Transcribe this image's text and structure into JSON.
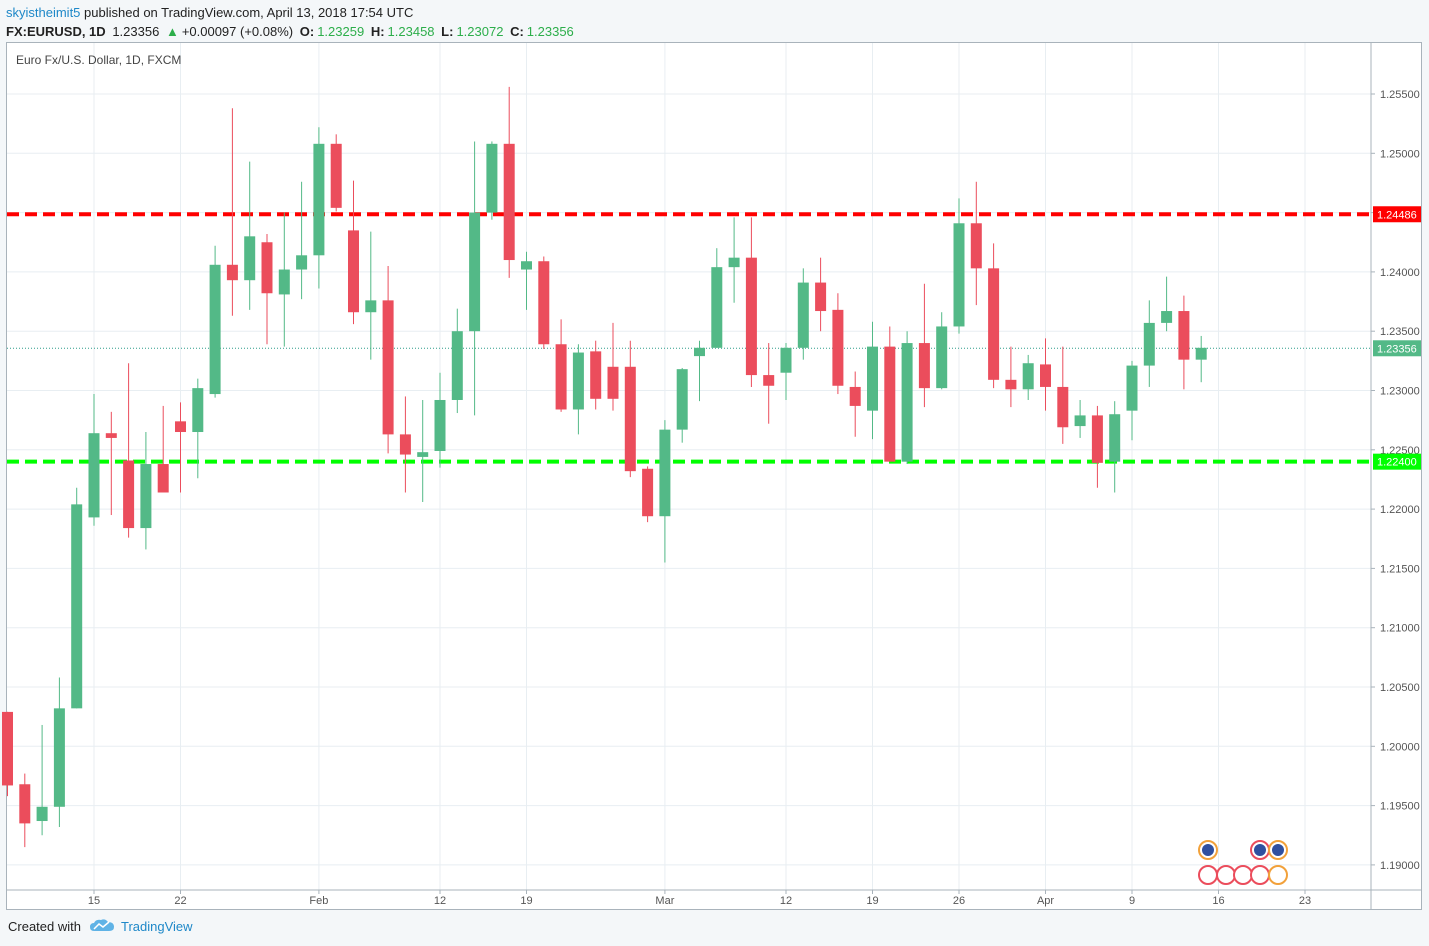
{
  "header": {
    "user": "skyistheimit5",
    "published": "published on TradingView.com, April 13, 2018 17:54 UTC",
    "symbol": "FX:EURUSD, 1D",
    "last": "1.23356",
    "change": "+0.00097 (+0.08%)",
    "o_label": "O:",
    "o_val": "1.23259",
    "h_label": "H:",
    "h_val": "1.23458",
    "l_label": "L:",
    "l_val": "1.23072",
    "c_label": "C:",
    "c_val": "1.23356"
  },
  "footer": {
    "created": "Created with",
    "brand": "TradingView"
  },
  "icons": {
    "up_arrow": "triangle-up-icon",
    "brand_logo": "tradingview-cloud-icon",
    "events": "economic-event-flag-icons"
  },
  "colors": {
    "up": "#53b987",
    "down": "#eb4d5c",
    "resistance": "#ff0000",
    "support": "#00ff00",
    "price_line": "#2f9e8a"
  },
  "chart_data": {
    "type": "candlestick",
    "title": "Euro Fx/U.S. Dollar, 1D, FXCM",
    "xlabel": "",
    "ylabel": "",
    "ylim": [
      1.1875,
      1.2585
    ],
    "y_ticks": [
      "1.25500",
      "1.25000",
      "1.24500",
      "1.24000",
      "1.23500",
      "1.23000",
      "1.22500",
      "1.22000",
      "1.21500",
      "1.21000",
      "1.20500",
      "1.20000",
      "1.19500",
      "1.19000"
    ],
    "x_ticks": [
      {
        "label": "15",
        "day": 5
      },
      {
        "label": "22",
        "day": 10
      },
      {
        "label": "Feb",
        "day": 18
      },
      {
        "label": "12",
        "day": 25
      },
      {
        "label": "19",
        "day": 30
      },
      {
        "label": "Mar",
        "day": 38
      },
      {
        "label": "12",
        "day": 45
      },
      {
        "label": "19",
        "day": 50
      },
      {
        "label": "26",
        "day": 55
      },
      {
        "label": "Apr",
        "day": 60
      },
      {
        "label": "9",
        "day": 65
      },
      {
        "label": "16",
        "day": 70
      },
      {
        "label": "23",
        "day": 75
      }
    ],
    "grid": true,
    "candles": [
      {
        "o": 1.2029,
        "h": 1.2029,
        "l": 1.1958,
        "c": 1.1967
      },
      {
        "o": 1.1968,
        "h": 1.1977,
        "l": 1.1915,
        "c": 1.1935
      },
      {
        "o": 1.1937,
        "h": 1.2018,
        "l": 1.1925,
        "c": 1.1949
      },
      {
        "o": 1.1949,
        "h": 1.2058,
        "l": 1.1932,
        "c": 1.2032
      },
      {
        "o": 1.2032,
        "h": 1.2218,
        "l": 1.2032,
        "c": 1.2204
      },
      {
        "o": 1.2193,
        "h": 1.2297,
        "l": 1.2186,
        "c": 1.2264
      },
      {
        "o": 1.2264,
        "h": 1.2282,
        "l": 1.2195,
        "c": 1.226
      },
      {
        "o": 1.2241,
        "h": 1.2323,
        "l": 1.2176,
        "c": 1.2184
      },
      {
        "o": 1.2184,
        "h": 1.2265,
        "l": 1.2166,
        "c": 1.2238
      },
      {
        "o": 1.2238,
        "h": 1.2287,
        "l": 1.222,
        "c": 1.2214
      },
      {
        "o": 1.2274,
        "h": 1.229,
        "l": 1.2214,
        "c": 1.2265
      },
      {
        "o": 1.2265,
        "h": 1.231,
        "l": 1.2226,
        "c": 1.2302
      },
      {
        "o": 1.2297,
        "h": 1.2422,
        "l": 1.2294,
        "c": 1.2406
      },
      {
        "o": 1.2406,
        "h": 1.2538,
        "l": 1.2363,
        "c": 1.2393
      },
      {
        "o": 1.2393,
        "h": 1.2493,
        "l": 1.2368,
        "c": 1.243
      },
      {
        "o": 1.2425,
        "h": 1.2432,
        "l": 1.2339,
        "c": 1.2382
      },
      {
        "o": 1.2381,
        "h": 1.245,
        "l": 1.2337,
        "c": 1.2402
      },
      {
        "o": 1.2402,
        "h": 1.2476,
        "l": 1.2377,
        "c": 1.2414
      },
      {
        "o": 1.2414,
        "h": 1.2522,
        "l": 1.2386,
        "c": 1.2508
      },
      {
        "o": 1.2508,
        "h": 1.2516,
        "l": 1.2451,
        "c": 1.2454
      },
      {
        "o": 1.2435,
        "h": 1.2477,
        "l": 1.2356,
        "c": 1.2366
      },
      {
        "o": 1.2366,
        "h": 1.2434,
        "l": 1.2326,
        "c": 1.2376
      },
      {
        "o": 1.2376,
        "h": 1.2405,
        "l": 1.2247,
        "c": 1.2263
      },
      {
        "o": 1.2263,
        "h": 1.2295,
        "l": 1.2214,
        "c": 1.2246
      },
      {
        "o": 1.2244,
        "h": 1.2292,
        "l": 1.2206,
        "c": 1.2248
      },
      {
        "o": 1.2249,
        "h": 1.2315,
        "l": 1.2235,
        "c": 1.2292
      },
      {
        "o": 1.2292,
        "h": 1.2369,
        "l": 1.2281,
        "c": 1.235
      },
      {
        "o": 1.235,
        "h": 1.251,
        "l": 1.2279,
        "c": 1.245
      },
      {
        "o": 1.245,
        "h": 1.251,
        "l": 1.2444,
        "c": 1.2508
      },
      {
        "o": 1.2508,
        "h": 1.2556,
        "l": 1.2395,
        "c": 1.241
      },
      {
        "o": 1.2402,
        "h": 1.2417,
        "l": 1.2368,
        "c": 1.2409
      },
      {
        "o": 1.2409,
        "h": 1.2413,
        "l": 1.2335,
        "c": 1.2339
      },
      {
        "o": 1.2339,
        "h": 1.236,
        "l": 1.2282,
        "c": 1.2284
      },
      {
        "o": 1.2284,
        "h": 1.2339,
        "l": 1.2263,
        "c": 1.2332
      },
      {
        "o": 1.2333,
        "h": 1.2342,
        "l": 1.2284,
        "c": 1.2293
      },
      {
        "o": 1.232,
        "h": 1.2357,
        "l": 1.2283,
        "c": 1.2293
      },
      {
        "o": 1.232,
        "h": 1.2342,
        "l": 1.2227,
        "c": 1.2232
      },
      {
        "o": 1.2234,
        "h": 1.2236,
        "l": 1.2189,
        "c": 1.2194
      },
      {
        "o": 1.2194,
        "h": 1.2275,
        "l": 1.2155,
        "c": 1.2267
      },
      {
        "o": 1.2267,
        "h": 1.2319,
        "l": 1.2256,
        "c": 1.2318
      },
      {
        "o": 1.2329,
        "h": 1.2342,
        "l": 1.2291,
        "c": 1.2336
      },
      {
        "o": 1.2336,
        "h": 1.242,
        "l": 1.2336,
        "c": 1.2404
      },
      {
        "o": 1.2404,
        "h": 1.2446,
        "l": 1.2374,
        "c": 1.2412
      },
      {
        "o": 1.2412,
        "h": 1.2446,
        "l": 1.2303,
        "c": 1.2313
      },
      {
        "o": 1.2313,
        "h": 1.234,
        "l": 1.2272,
        "c": 1.2304
      },
      {
        "o": 1.2315,
        "h": 1.234,
        "l": 1.2292,
        "c": 1.2336
      },
      {
        "o": 1.2336,
        "h": 1.2403,
        "l": 1.2326,
        "c": 1.2391
      },
      {
        "o": 1.2391,
        "h": 1.2412,
        "l": 1.235,
        "c": 1.2367
      },
      {
        "o": 1.2368,
        "h": 1.2382,
        "l": 1.2297,
        "c": 1.2304
      },
      {
        "o": 1.2303,
        "h": 1.2316,
        "l": 1.2261,
        "c": 1.2287
      },
      {
        "o": 1.2283,
        "h": 1.2358,
        "l": 1.2259,
        "c": 1.2337
      },
      {
        "o": 1.2337,
        "h": 1.2354,
        "l": 1.224,
        "c": 1.224
      },
      {
        "o": 1.224,
        "h": 1.235,
        "l": 1.2238,
        "c": 1.234
      },
      {
        "o": 1.234,
        "h": 1.239,
        "l": 1.2286,
        "c": 1.2302
      },
      {
        "o": 1.2302,
        "h": 1.2366,
        "l": 1.2301,
        "c": 1.2354
      },
      {
        "o": 1.2354,
        "h": 1.2462,
        "l": 1.2348,
        "c": 1.2441
      },
      {
        "o": 1.2441,
        "h": 1.2476,
        "l": 1.2372,
        "c": 1.2403
      },
      {
        "o": 1.2403,
        "h": 1.2424,
        "l": 1.2302,
        "c": 1.2309
      },
      {
        "o": 1.2309,
        "h": 1.2337,
        "l": 1.2286,
        "c": 1.2301
      },
      {
        "o": 1.2301,
        "h": 1.233,
        "l": 1.2292,
        "c": 1.2323
      },
      {
        "o": 1.2322,
        "h": 1.2344,
        "l": 1.2283,
        "c": 1.2303
      },
      {
        "o": 1.2303,
        "h": 1.2337,
        "l": 1.2255,
        "c": 1.2269
      },
      {
        "o": 1.227,
        "h": 1.2292,
        "l": 1.226,
        "c": 1.2279
      },
      {
        "o": 1.2279,
        "h": 1.2287,
        "l": 1.2218,
        "c": 1.2239
      },
      {
        "o": 1.224,
        "h": 1.2291,
        "l": 1.2214,
        "c": 1.228
      },
      {
        "o": 1.2283,
        "h": 1.2325,
        "l": 1.2258,
        "c": 1.2321
      },
      {
        "o": 1.2321,
        "h": 1.2376,
        "l": 1.2303,
        "c": 1.2357
      },
      {
        "o": 1.2357,
        "h": 1.2396,
        "l": 1.235,
        "c": 1.2367
      },
      {
        "o": 1.2367,
        "h": 1.238,
        "l": 1.2301,
        "c": 1.2326
      },
      {
        "o": 1.2326,
        "h": 1.2346,
        "l": 1.2307,
        "c": 1.2336
      }
    ],
    "horizontal_lines": [
      {
        "name": "resistance",
        "value": 1.24486,
        "label": "1.24486",
        "color": "#ff0000"
      },
      {
        "name": "support",
        "value": 1.224,
        "label": "1.22400",
        "color": "#00ff00"
      },
      {
        "name": "last-price",
        "value": 1.23356,
        "label": "1.23356",
        "color": "#53b987"
      }
    ]
  }
}
